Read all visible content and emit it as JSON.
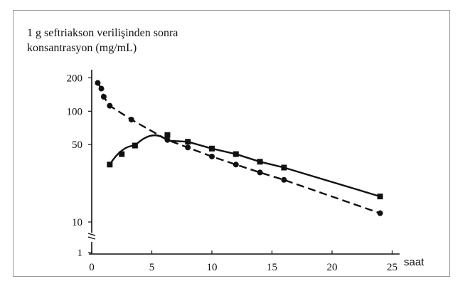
{
  "chart_data": {
    "type": "line",
    "title_lines": [
      "1 g seftriakson verilişinden sonra",
      "konsantrasyon (mg/mL)"
    ],
    "xlabel": "saat",
    "ylabel": "",
    "xlim": [
      0,
      25
    ],
    "ylim": [
      1,
      200
    ],
    "y_scale": "broken-log",
    "x_ticks": [
      0,
      5,
      10,
      15,
      20,
      25
    ],
    "y_ticks": [
      1,
      10,
      50,
      100,
      200
    ],
    "grid": false,
    "legend": "none",
    "series": [
      {
        "style": "dashed",
        "marker": "circle",
        "x": [
          0.5,
          0.8,
          1.0,
          1.5,
          3.3,
          6.3,
          8.0,
          10.0,
          12.0,
          14.0,
          16.0,
          24.0
        ],
        "y": [
          180,
          160,
          135,
          112,
          84,
          55,
          47,
          39,
          33,
          28,
          24,
          12
        ]
      },
      {
        "style": "solid",
        "marker": "square",
        "x": [
          1.5,
          2.5,
          3.6,
          6.3,
          8.0,
          10.0,
          12.0,
          14.0,
          16.0,
          24.0
        ],
        "y": [
          33,
          41,
          49,
          61,
          53,
          46,
          41,
          35,
          31,
          17
        ]
      }
    ]
  },
  "colors": {
    "ink": "#111111",
    "frame": "#9a9a9a"
  }
}
